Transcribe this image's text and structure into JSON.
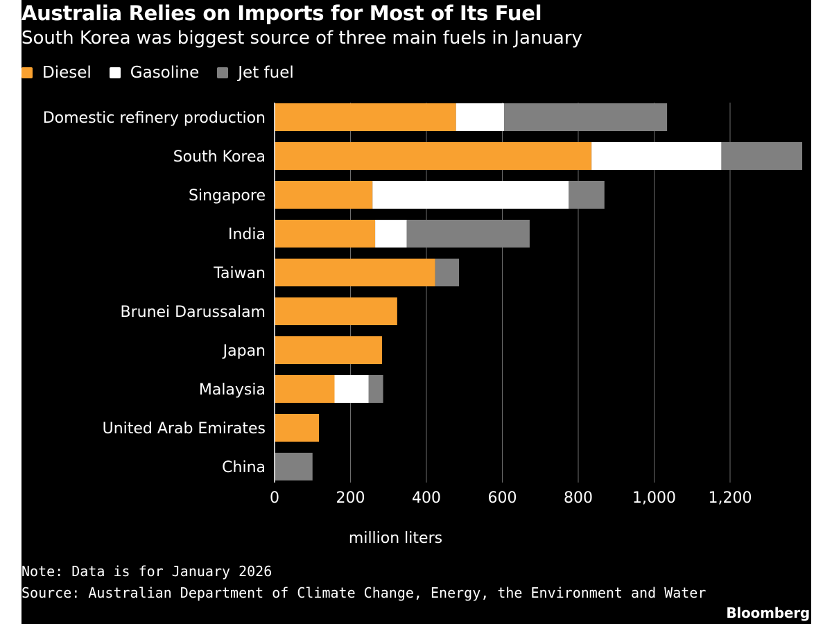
{
  "header": {
    "title": "Australia Relies on Imports for Most of Its Fuel",
    "subtitle": "South Korea was biggest source of three main fuels in January"
  },
  "legend": [
    {
      "label": "Diesel",
      "color": "#F9A130"
    },
    {
      "label": "Gasoline",
      "color": "#FFFFFF"
    },
    {
      "label": "Jet fuel",
      "color": "#808080"
    }
  ],
  "footer": {
    "note": "Note: Data is for January 2026",
    "source": "Source: Australian Department of Climate Change, Energy, the Environment and Water",
    "brand": "Bloomberg"
  },
  "chart_data": {
    "type": "bar",
    "orientation": "horizontal",
    "stacked": true,
    "categories": [
      "Domestic refinery production",
      "South Korea",
      "Singapore",
      "India",
      "Taiwan",
      "Brunei Darussalam",
      "Japan",
      "Malaysia",
      "United Arab Emirates",
      "China"
    ],
    "series": [
      {
        "name": "Diesel",
        "color": "#F9A130",
        "values": [
          478,
          835,
          258,
          265,
          423,
          323,
          283,
          158,
          117,
          0
        ]
      },
      {
        "name": "Gasoline",
        "color": "#FFFFFF",
        "values": [
          127,
          342,
          517,
          83,
          0,
          0,
          0,
          90,
          0,
          0
        ]
      },
      {
        "name": "Jet fuel",
        "color": "#808080",
        "values": [
          429,
          213,
          94,
          324,
          63,
          0,
          0,
          38,
          0,
          100
        ]
      }
    ],
    "xlabel": "million liters",
    "xlim": [
      0,
      1390
    ],
    "xticks": [
      0,
      200,
      400,
      600,
      800,
      1000,
      1200
    ],
    "xtick_labels": [
      "0",
      "200",
      "400",
      "600",
      "800",
      "1,000",
      "1,200"
    ],
    "grid": "vertical",
    "legend_position": "top-left"
  }
}
